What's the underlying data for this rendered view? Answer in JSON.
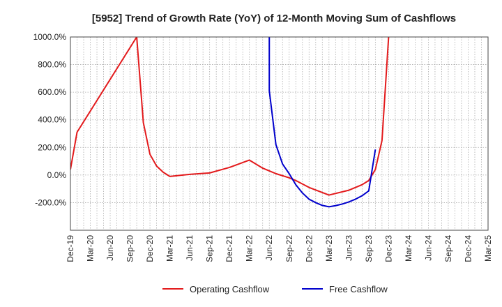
{
  "chart_data": {
    "type": "line",
    "title": "[5952]  Trend of Growth Rate (YoY) of 12-Month Moving Sum of Cashflows",
    "xlabel": "",
    "ylabel": "",
    "ylim": [
      -400,
      1000
    ],
    "y_ticks": [
      1000,
      800,
      600,
      400,
      200,
      0,
      -200
    ],
    "y_tick_labels": [
      "1000.0%",
      "800.0%",
      "600.0%",
      "400.0%",
      "200.0%",
      "0.0%",
      "-200.0%"
    ],
    "x_tick_labels": [
      "Dec-19",
      "Mar-20",
      "Jun-20",
      "Sep-20",
      "Dec-20",
      "Mar-21",
      "Jun-21",
      "Sep-21",
      "Dec-21",
      "Mar-22",
      "Jun-22",
      "Sep-22",
      "Dec-22",
      "Mar-23",
      "Jun-23",
      "Sep-23",
      "Dec-23",
      "Mar-24",
      "Jun-24",
      "Sep-24",
      "Dec-24",
      "Mar-25"
    ],
    "grid": true,
    "legend_position": "bottom",
    "series": [
      {
        "name": "Operating Cashflow",
        "color": "#e31a1c",
        "points": [
          {
            "x": "Dec-19",
            "y": 40
          },
          {
            "x": "Jan-20",
            "y": 310
          },
          {
            "x": "Oct-20",
            "y": 1000
          },
          {
            "x": "Nov-20",
            "y": 380
          },
          {
            "x": "Dec-20",
            "y": 150
          },
          {
            "x": "Jan-21",
            "y": 65
          },
          {
            "x": "Feb-21",
            "y": 20
          },
          {
            "x": "Mar-21",
            "y": -10
          },
          {
            "x": "Apr-21",
            "y": -5
          },
          {
            "x": "Jun-21",
            "y": 5
          },
          {
            "x": "Sep-21",
            "y": 15
          },
          {
            "x": "Dec-21",
            "y": 55
          },
          {
            "x": "Mar-22",
            "y": 108
          },
          {
            "x": "May-22",
            "y": 50
          },
          {
            "x": "Jul-22",
            "y": 10
          },
          {
            "x": "Sep-22",
            "y": -20
          },
          {
            "x": "Oct-22",
            "y": -40
          },
          {
            "x": "Dec-22",
            "y": -90
          },
          {
            "x": "Mar-23",
            "y": -145
          },
          {
            "x": "Jun-23",
            "y": -110
          },
          {
            "x": "Aug-23",
            "y": -70
          },
          {
            "x": "Sep-23",
            "y": -40
          },
          {
            "x": "Oct-23",
            "y": 40
          },
          {
            "x": "Nov-23",
            "y": 250
          },
          {
            "x": "Dec-23",
            "y": 1000
          }
        ]
      },
      {
        "name": "Free Cashflow",
        "color": "#0000cc",
        "points": [
          {
            "x": "Jun-22",
            "y": 1000
          },
          {
            "x": "Jun-22",
            "y": 610
          },
          {
            "x": "Jul-22",
            "y": 220
          },
          {
            "x": "Aug-22",
            "y": 80
          },
          {
            "x": "Sep-22",
            "y": 10
          },
          {
            "x": "Oct-22",
            "y": -70
          },
          {
            "x": "Nov-22",
            "y": -130
          },
          {
            "x": "Dec-22",
            "y": -175
          },
          {
            "x": "Jan-23",
            "y": -200
          },
          {
            "x": "Feb-23",
            "y": -220
          },
          {
            "x": "Mar-23",
            "y": -230
          },
          {
            "x": "Apr-23",
            "y": -222
          },
          {
            "x": "May-23",
            "y": -210
          },
          {
            "x": "Jun-23",
            "y": -195
          },
          {
            "x": "Jul-23",
            "y": -175
          },
          {
            "x": "Aug-23",
            "y": -150
          },
          {
            "x": "Sep-23",
            "y": -115
          },
          {
            "x": "Oct-23",
            "y": 185
          }
        ]
      }
    ]
  }
}
